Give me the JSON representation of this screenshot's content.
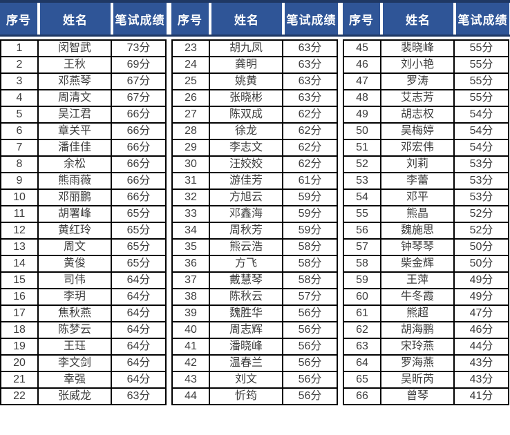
{
  "colors": {
    "header_bg": "#2F5597",
    "header_border": "#1F3864",
    "header_text": "#FFFFFF",
    "body_border": "#000000",
    "body_text": "#3D3D3D",
    "body_bg": "#FFFFFF"
  },
  "table": {
    "headers": [
      "序号",
      "姓名",
      "笔试成绩"
    ],
    "groups": [
      {
        "rows": [
          [
            "1",
            "闵智武",
            "73分"
          ],
          [
            "2",
            "王秋",
            "69分"
          ],
          [
            "3",
            "邓燕琴",
            "67分"
          ],
          [
            "4",
            "周清文",
            "67分"
          ],
          [
            "5",
            "吴江君",
            "66分"
          ],
          [
            "6",
            "章关平",
            "66分"
          ],
          [
            "7",
            "潘佳佳",
            "66分"
          ],
          [
            "8",
            "余松",
            "66分"
          ],
          [
            "9",
            "熊雨薇",
            "66分"
          ],
          [
            "10",
            "邓丽鹏",
            "66分"
          ],
          [
            "11",
            "胡署峰",
            "65分"
          ],
          [
            "12",
            "黄红玲",
            "65分"
          ],
          [
            "13",
            "周文",
            "65分"
          ],
          [
            "14",
            "黄俊",
            "65分"
          ],
          [
            "15",
            "司伟",
            "64分"
          ],
          [
            "16",
            "李玥",
            "64分"
          ],
          [
            "17",
            "焦秋燕",
            "64分"
          ],
          [
            "18",
            "陈梦云",
            "64分"
          ],
          [
            "19",
            "王珏",
            "64分"
          ],
          [
            "20",
            "李文剑",
            "64分"
          ],
          [
            "21",
            "幸强",
            "64分"
          ],
          [
            "22",
            "张威龙",
            "63分"
          ]
        ]
      },
      {
        "rows": [
          [
            "23",
            "胡九凤",
            "63分"
          ],
          [
            "24",
            "龚明",
            "63分"
          ],
          [
            "25",
            "姚黄",
            "63分"
          ],
          [
            "26",
            "张晓彬",
            "63分"
          ],
          [
            "27",
            "陈双成",
            "62分"
          ],
          [
            "28",
            "徐龙",
            "62分"
          ],
          [
            "29",
            "李志文",
            "62分"
          ],
          [
            "30",
            "汪姣姣",
            "62分"
          ],
          [
            "31",
            "游佳芳",
            "61分"
          ],
          [
            "32",
            "方旭云",
            "59分"
          ],
          [
            "33",
            "邓鑫海",
            "59分"
          ],
          [
            "34",
            "周秋芳",
            "59分"
          ],
          [
            "35",
            "熊云浩",
            "58分"
          ],
          [
            "36",
            "方飞",
            "58分"
          ],
          [
            "37",
            "戴慧琴",
            "58分"
          ],
          [
            "38",
            "陈秋云",
            "57分"
          ],
          [
            "39",
            "魏胜华",
            "56分"
          ],
          [
            "40",
            "周志辉",
            "56分"
          ],
          [
            "41",
            "潘晓峰",
            "56分"
          ],
          [
            "42",
            "温春兰",
            "56分"
          ],
          [
            "43",
            "刘文",
            "56分"
          ],
          [
            "44",
            "忻筠",
            "56分"
          ]
        ]
      },
      {
        "rows": [
          [
            "45",
            "裴晓峰",
            "55分"
          ],
          [
            "46",
            "刘小艳",
            "55分"
          ],
          [
            "47",
            "罗涛",
            "55分"
          ],
          [
            "48",
            "艾志芳",
            "55分"
          ],
          [
            "49",
            "胡志权",
            "54分"
          ],
          [
            "50",
            "吴梅婷",
            "54分"
          ],
          [
            "51",
            "邓宏伟",
            "54分"
          ],
          [
            "52",
            "刘莉",
            "53分"
          ],
          [
            "53",
            "李蕾",
            "53分"
          ],
          [
            "54",
            "邓平",
            "53分"
          ],
          [
            "55",
            "熊晶",
            "52分"
          ],
          [
            "56",
            "魏施思",
            "52分"
          ],
          [
            "57",
            "钟琴琴",
            "50分"
          ],
          [
            "58",
            "柴金辉",
            "50分"
          ],
          [
            "59",
            "王萍",
            "49分"
          ],
          [
            "60",
            "牛冬霞",
            "49分"
          ],
          [
            "61",
            "熊超",
            "47分"
          ],
          [
            "62",
            "胡海鹏",
            "46分"
          ],
          [
            "63",
            "宋玲燕",
            "44分"
          ],
          [
            "64",
            "罗海燕",
            "43分"
          ],
          [
            "65",
            "吴昕芮",
            "43分"
          ],
          [
            "66",
            "曾琴",
            "41分"
          ]
        ]
      }
    ]
  }
}
